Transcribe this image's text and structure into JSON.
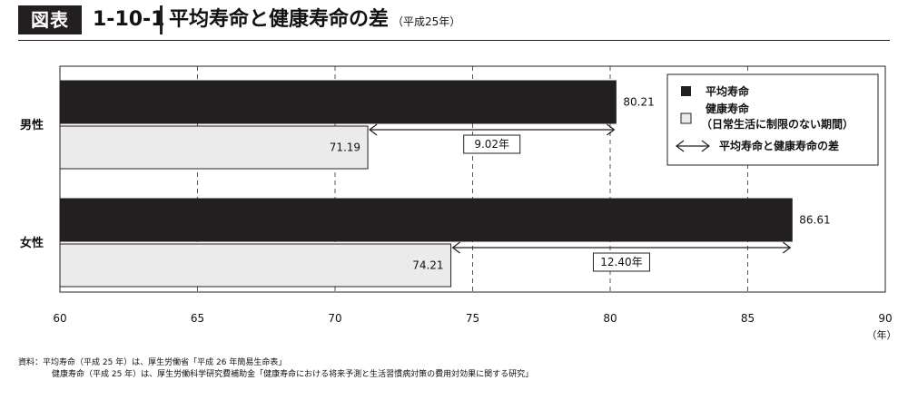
{
  "header": {
    "fig_label": "図表",
    "fig_number": "1-10-1",
    "title": "平均寿命と健康寿命の差",
    "subtitle": "（平成25年）"
  },
  "chart_data": {
    "type": "bar",
    "orientation": "horizontal",
    "categories": [
      "男性",
      "女性"
    ],
    "series": [
      {
        "name": "平均寿命",
        "values": [
          80.21,
          86.61
        ],
        "color": "#231f20"
      },
      {
        "name": "健康寿命（日常生活に制限のない期間）",
        "values": [
          71.19,
          74.21
        ],
        "color": "#ebebeb"
      }
    ],
    "value_labels": [
      [
        "80.21",
        "86.61"
      ],
      [
        "71.19",
        "74.21"
      ]
    ],
    "differences": [
      {
        "category": "男性",
        "label": "9.02年"
      },
      {
        "category": "女性",
        "label": "12.40年"
      }
    ],
    "xlim": [
      60,
      90
    ],
    "xticks": [
      60,
      65,
      70,
      75,
      80,
      85,
      90
    ],
    "xtick_labels": [
      "60",
      "65",
      "70",
      "75",
      "80",
      "85",
      "90"
    ],
    "x_unit": "（年）",
    "grid": "vertical dashed",
    "legend": {
      "position": "top-right",
      "items": [
        {
          "marker": "black-square",
          "label": "平均寿命"
        },
        {
          "marker": "gray-square",
          "label": "健康寿命",
          "sublabel": "（日常生活に制限のない期間）"
        },
        {
          "marker": "double-arrow",
          "label": "平均寿命と健康寿命の差"
        }
      ]
    }
  },
  "source": {
    "line1": "資料：平均寿命（平成 25 年）は、厚生労働省「平成 26 年簡易生命表」",
    "line2": "健康寿命（平成 25 年）は、厚生労働科学研究費補助金「健康寿命における将来予測と生活習慣病対策の費用対効果に関する研究」"
  }
}
